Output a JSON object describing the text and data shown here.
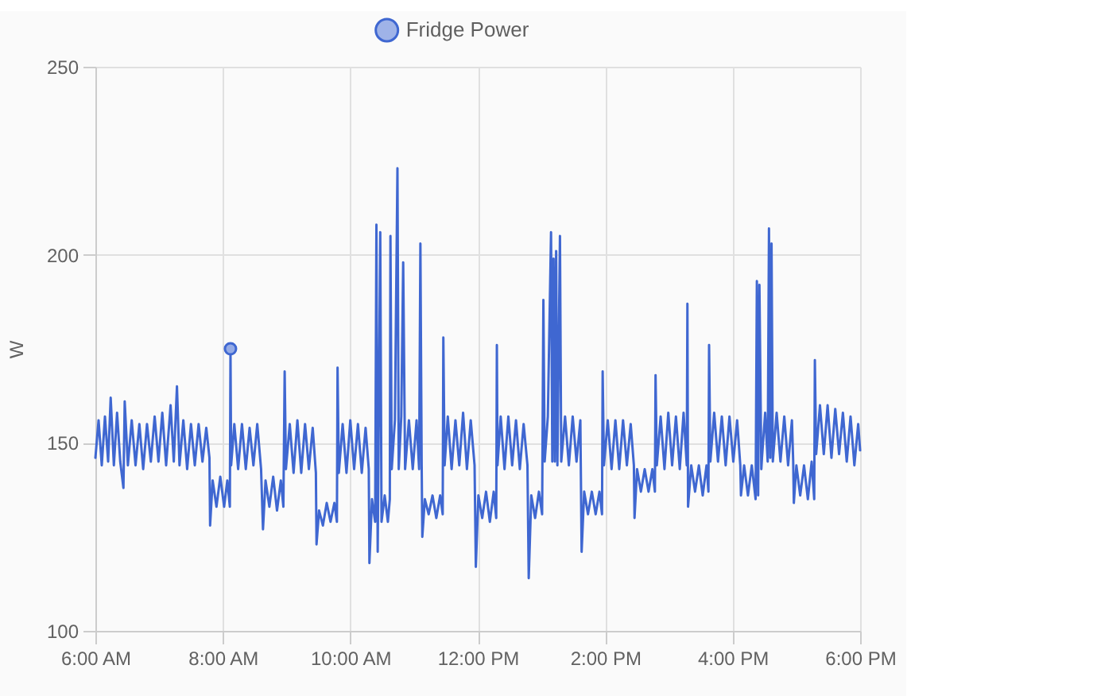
{
  "chart_data": {
    "type": "line",
    "legend": "top",
    "grid": true,
    "ylabel": "W",
    "xlim": [
      6,
      18
    ],
    "xticks": [
      {
        "value": 6,
        "label": "6:00 AM"
      },
      {
        "value": 8,
        "label": "8:00 AM"
      },
      {
        "value": 10,
        "label": "10:00 AM"
      },
      {
        "value": 12,
        "label": "12:00 PM"
      },
      {
        "value": 14,
        "label": "2:00 PM"
      },
      {
        "value": 16,
        "label": "4:00 PM"
      },
      {
        "value": 18,
        "label": "6:00 PM"
      }
    ],
    "ylim": [
      100,
      250
    ],
    "yticks": [
      100,
      150,
      200,
      250
    ],
    "series": [
      {
        "name": "Fridge Power",
        "color": "#3f67d1",
        "x": [
          6.0,
          6.05,
          6.1,
          6.15,
          6.2,
          6.24,
          6.29,
          6.34,
          6.39,
          6.44,
          6.46,
          6.51,
          6.57,
          6.63,
          6.69,
          6.75,
          6.81,
          6.87,
          6.93,
          6.99,
          7.05,
          7.11,
          7.18,
          7.23,
          7.28,
          7.32,
          7.38,
          7.44,
          7.5,
          7.56,
          7.62,
          7.68,
          7.74,
          7.79,
          7.8,
          7.84,
          7.9,
          7.96,
          8.02,
          8.07,
          8.11,
          8.12,
          8.13,
          8.18,
          8.24,
          8.3,
          8.36,
          8.42,
          8.48,
          8.54,
          8.6,
          8.63,
          8.67,
          8.73,
          8.79,
          8.85,
          8.91,
          8.95,
          8.97,
          8.99,
          9.05,
          9.11,
          9.17,
          9.23,
          9.29,
          9.35,
          9.41,
          9.46,
          9.47,
          9.51,
          9.57,
          9.63,
          9.69,
          9.75,
          9.79,
          9.8,
          9.82,
          9.88,
          9.94,
          10.0,
          10.06,
          10.12,
          10.18,
          10.24,
          10.29,
          10.3,
          10.34,
          10.39,
          10.41,
          10.43,
          10.47,
          10.49,
          10.54,
          10.59,
          10.62,
          10.63,
          10.65,
          10.7,
          10.74,
          10.76,
          10.8,
          10.83,
          10.86,
          10.92,
          10.98,
          11.04,
          11.08,
          11.1,
          11.12,
          11.13,
          11.17,
          11.23,
          11.29,
          11.35,
          11.41,
          11.45,
          11.46,
          11.48,
          11.53,
          11.59,
          11.65,
          11.71,
          11.77,
          11.83,
          11.89,
          11.95,
          11.97,
          12.01,
          12.07,
          12.13,
          12.19,
          12.25,
          12.29,
          12.3,
          12.31,
          12.36,
          12.42,
          12.48,
          12.54,
          12.6,
          12.66,
          12.72,
          12.78,
          12.8,
          12.84,
          12.9,
          12.96,
          13.01,
          13.03,
          13.05,
          13.1,
          13.15,
          13.17,
          13.19,
          13.21,
          13.23,
          13.25,
          13.29,
          13.31,
          13.37,
          13.43,
          13.49,
          13.55,
          13.61,
          13.63,
          13.67,
          13.73,
          13.79,
          13.85,
          13.91,
          13.95,
          13.96,
          13.98,
          14.04,
          14.1,
          14.16,
          14.22,
          14.28,
          14.34,
          14.4,
          14.45,
          14.46,
          14.5,
          14.56,
          14.62,
          14.68,
          14.74,
          14.78,
          14.79,
          14.81,
          14.87,
          14.93,
          14.99,
          15.05,
          15.11,
          15.17,
          15.23,
          15.28,
          15.29,
          15.3,
          15.35,
          15.41,
          15.47,
          15.53,
          15.59,
          15.62,
          15.63,
          15.65,
          15.71,
          15.77,
          15.83,
          15.89,
          15.95,
          16.01,
          16.07,
          16.12,
          16.13,
          16.18,
          16.24,
          16.3,
          16.36,
          16.38,
          16.4,
          16.42,
          16.45,
          16.46,
          16.51,
          16.55,
          16.57,
          16.59,
          16.61,
          16.63,
          16.69,
          16.75,
          16.81,
          16.87,
          16.93,
          16.95,
          16.96,
          17.0,
          17.06,
          17.12,
          17.18,
          17.24,
          17.28,
          17.29,
          17.31,
          17.37,
          17.43,
          17.49,
          17.55,
          17.61,
          17.67,
          17.73,
          17.79,
          17.85,
          17.91,
          17.97,
          18.0
        ],
        "values": [
          146,
          156,
          144,
          157,
          145,
          162,
          144,
          158,
          145,
          138,
          161,
          144,
          156,
          144,
          155,
          143,
          155,
          145,
          157,
          145,
          158,
          144,
          160,
          145,
          165,
          144,
          156,
          143,
          155,
          144,
          155,
          145,
          154,
          146,
          128,
          140,
          133,
          141,
          133,
          140,
          133,
          175,
          144,
          155,
          143,
          155,
          143,
          154,
          144,
          155,
          143,
          127,
          140,
          133,
          141,
          132,
          140,
          133,
          169,
          143,
          155,
          142,
          156,
          142,
          155,
          143,
          154,
          142,
          123,
          132,
          128,
          134,
          129,
          134,
          129,
          170,
          142,
          155,
          142,
          156,
          143,
          155,
          142,
          154,
          143,
          118,
          135,
          129,
          208,
          121,
          206,
          129,
          136,
          129,
          135,
          205,
          143,
          156,
          223,
          143,
          157,
          198,
          143,
          156,
          143,
          156,
          143,
          203,
          144,
          125,
          135,
          131,
          136,
          130,
          136,
          131,
          178,
          144,
          157,
          143,
          156,
          144,
          158,
          143,
          156,
          144,
          117,
          136,
          130,
          137,
          129,
          137,
          130,
          176,
          144,
          157,
          143,
          157,
          144,
          156,
          143,
          155,
          144,
          114,
          136,
          130,
          137,
          131,
          188,
          145,
          157,
          206,
          145,
          199,
          145,
          201,
          144,
          205,
          145,
          157,
          144,
          157,
          145,
          156,
          121,
          137,
          131,
          137,
          131,
          137,
          131,
          169,
          144,
          156,
          143,
          156,
          143,
          156,
          144,
          155,
          144,
          130,
          143,
          137,
          143,
          137,
          143,
          137,
          168,
          144,
          157,
          143,
          158,
          144,
          157,
          143,
          158,
          144,
          187,
          133,
          144,
          137,
          144,
          136,
          144,
          137,
          176,
          145,
          158,
          145,
          157,
          144,
          157,
          145,
          156,
          144,
          136,
          144,
          136,
          144,
          135,
          193,
          136,
          192,
          143,
          146,
          158,
          145,
          207,
          146,
          203,
          145,
          158,
          145,
          157,
          144,
          156,
          145,
          134,
          144,
          136,
          144,
          135,
          145,
          135,
          172,
          147,
          160,
          147,
          160,
          146,
          159,
          147,
          158,
          145,
          157,
          144,
          155,
          148
        ]
      },
      {
        "type": "scatter",
        "color": "#3f67d1",
        "marker": "circle",
        "x": [
          8.12
        ],
        "values": [
          175
        ]
      }
    ]
  }
}
